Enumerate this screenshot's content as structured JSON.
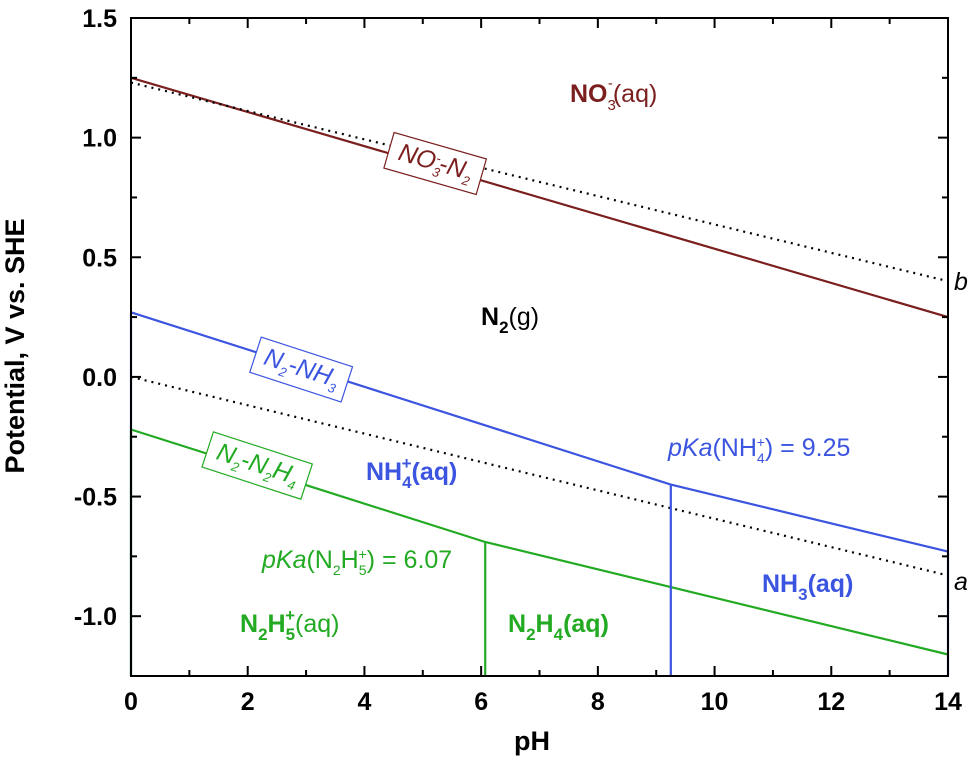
{
  "colors": {
    "nitrate": "#7b1e1e",
    "ammonia": "#3c55e0",
    "hydrazine": "#22aa22",
    "black": "#000000",
    "white": "#ffffff"
  },
  "chart_data": {
    "type": "line",
    "xlabel": "pH",
    "ylabel": "Potential, V vs. SHE",
    "xlim": [
      0,
      14
    ],
    "ylim": [
      -1.25,
      1.5
    ],
    "xticks": [
      "0",
      "2",
      "4",
      "6",
      "8",
      "10",
      "12",
      "14"
    ],
    "yticks": [
      "1.5",
      "1.0",
      "0.5",
      "0.0",
      "-0.5",
      "-1.0"
    ],
    "grid": false,
    "series": [
      {
        "name": "NO3- - N2",
        "style": "solid",
        "color": "#7b1e1e",
        "x": [
          0,
          14
        ],
        "y": [
          1.25,
          0.25
        ]
      },
      {
        "name": "N2 - NH3",
        "style": "solid",
        "color": "#3c55e0",
        "x": [
          0,
          9.25,
          14
        ],
        "y": [
          0.27,
          -0.45,
          -0.73
        ]
      },
      {
        "name": "N2 - N2H4",
        "style": "solid",
        "color": "#22aa22",
        "x": [
          0,
          6.07,
          14
        ],
        "y": [
          -0.22,
          -0.69,
          -1.16
        ]
      },
      {
        "name": "b",
        "style": "dotted",
        "color": "#000000",
        "x": [
          0,
          14
        ],
        "y": [
          1.23,
          0.4
        ]
      },
      {
        "name": "a",
        "style": "dotted",
        "color": "#000000",
        "x": [
          0,
          14
        ],
        "y": [
          0.0,
          -0.83
        ]
      }
    ],
    "boundaries": [
      {
        "color": "#3c55e0",
        "x": 0,
        "y": [
          -1.25,
          0.27
        ]
      },
      {
        "color": "#3c55e0",
        "x": 9.25,
        "y": [
          -1.25,
          -0.45
        ]
      },
      {
        "color": "#3c55e0",
        "x": 14,
        "y": [
          -1.25,
          -0.73
        ]
      },
      {
        "color": "#22aa22",
        "x": 0,
        "y": [
          -1.25,
          -0.22
        ]
      },
      {
        "color": "#22aa22",
        "x": 6.07,
        "y": [
          -1.25,
          -0.69
        ]
      }
    ],
    "annotations": {
      "no3_region": {
        "main": "NO",
        "sub": "3",
        "sup": "-",
        "tail": "(aq)"
      },
      "n2_region": {
        "main": "N",
        "sub": "2",
        "tail": "(g)"
      },
      "nh4_region": {
        "main": "NH",
        "sub": "4",
        "sup": "+",
        "tail": "(aq)"
      },
      "nh3_region": {
        "main": "NH",
        "sub": "3",
        "tail": "(aq)"
      },
      "n2h4_region": {
        "a": "N",
        "sub1": "2",
        "b": "H",
        "sub2": "4",
        "tail": "(aq)"
      },
      "n2h5_region": {
        "a": "N",
        "sub1": "2",
        "b": "H",
        "sub2": "5",
        "sup": "+",
        "tail": "(aq)"
      },
      "pka_nh4": {
        "pre": "pKa",
        "open": "(NH",
        "sub": "4",
        "sup": "+",
        "tail": ") = 9.25"
      },
      "pka_n2h5": {
        "pre": "pKa",
        "open": "(N",
        "sub1": "2",
        "mid": "H",
        "sub2": "5",
        "sup": "+",
        "tail": ") = 6.07"
      },
      "box_no3_n2": {
        "a": "NO",
        "sub": "3",
        "sup": "-",
        "dash": "-N",
        "sub2": "2"
      },
      "box_n2_nh3": {
        "a": "N",
        "sub": "2",
        "dash": "-NH",
        "sub2": "3"
      },
      "box_n2_n2h4": {
        "a": "N",
        "sub": "2",
        "dash": "-N",
        "sub2": "2",
        "b": "H",
        "sub3": "4"
      },
      "label_a": "a",
      "label_b": "b"
    }
  }
}
